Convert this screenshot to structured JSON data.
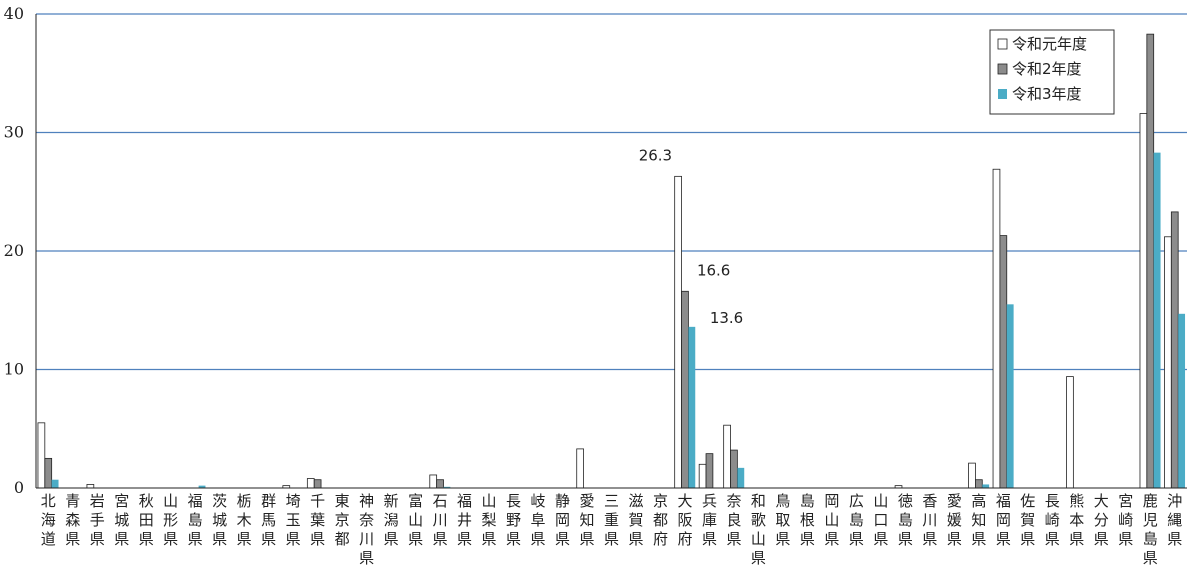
{
  "chart_data": {
    "type": "bar",
    "title": "",
    "xlabel": "",
    "ylabel": "",
    "ylim": [
      0,
      40
    ],
    "yticks": [
      0,
      10,
      20,
      30,
      40
    ],
    "grid": true,
    "legend_position": "top-right",
    "categories": [
      "北海道",
      "青森県",
      "岩手県",
      "宮城県",
      "秋田県",
      "山形県",
      "福島県",
      "茨城県",
      "栃木県",
      "群馬県",
      "埼玉県",
      "千葉県",
      "東京都",
      "神奈川県",
      "新潟県",
      "富山県",
      "石川県",
      "福井県",
      "山梨県",
      "長野県",
      "岐阜県",
      "静岡県",
      "愛知県",
      "三重県",
      "滋賀県",
      "京都府",
      "大阪府",
      "兵庫県",
      "奈良県",
      "和歌山県",
      "鳥取県",
      "島根県",
      "岡山県",
      "広島県",
      "山口県",
      "徳島県",
      "香川県",
      "愛媛県",
      "高知県",
      "福岡県",
      "佐賀県",
      "長崎県",
      "熊本県",
      "大分県",
      "宮崎県",
      "鹿児島県",
      "沖縄県"
    ],
    "series": [
      {
        "name": "令和元年度",
        "color": "#ffffff",
        "values": [
          5.5,
          0,
          0.3,
          0,
          0,
          0,
          0,
          0,
          0,
          0,
          0.2,
          0.8,
          0,
          0,
          0,
          0,
          1.1,
          0,
          0,
          0,
          0,
          0,
          3.3,
          0,
          0,
          0,
          26.3,
          2.0,
          5.3,
          0,
          0,
          0,
          0,
          0,
          0,
          0.2,
          0,
          0,
          2.1,
          26.9,
          0,
          0,
          9.4,
          0,
          0,
          31.6,
          21.2
        ]
      },
      {
        "name": "令和2年度",
        "color": "#8c8c8c",
        "values": [
          2.5,
          0,
          0,
          0,
          0,
          0,
          0,
          0,
          0,
          0,
          0,
          0.7,
          0,
          0,
          0,
          0,
          0.7,
          0,
          0,
          0,
          0,
          0,
          0,
          0,
          0,
          0,
          16.6,
          2.9,
          3.2,
          0,
          0,
          0,
          0,
          0,
          0,
          0,
          0,
          0,
          0.7,
          21.3,
          0,
          0,
          0,
          0,
          0,
          38.3,
          23.3
        ]
      },
      {
        "name": "令和3年度",
        "color": "#4bacc6",
        "values": [
          0.7,
          0,
          0,
          0,
          0,
          0,
          0.2,
          0,
          0,
          0,
          0,
          0,
          0,
          0,
          0,
          0,
          0.1,
          0,
          0,
          0,
          0,
          0,
          0,
          0,
          0,
          0,
          13.6,
          0,
          1.7,
          0,
          0,
          0,
          0,
          0,
          0,
          0,
          0,
          0,
          0.3,
          15.5,
          0,
          0,
          0,
          0,
          0,
          28.3,
          14.7
        ]
      }
    ],
    "annotations": [
      {
        "text": "26.3",
        "category": "大阪府",
        "series": 0
      },
      {
        "text": "16.6",
        "category": "大阪府",
        "series": 1
      },
      {
        "text": "13.6",
        "category": "大阪府",
        "series": 2
      }
    ]
  }
}
